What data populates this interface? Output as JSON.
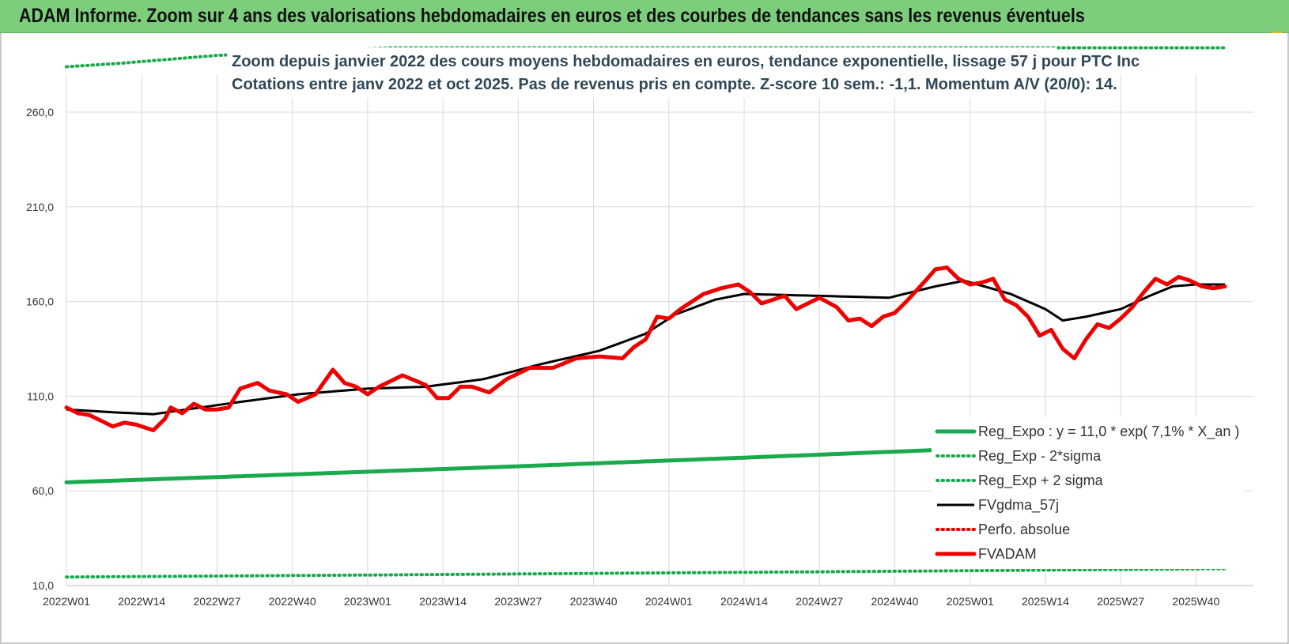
{
  "banner": {
    "title": "ADAM Informe. Zoom sur 4 ans des valorisations hebdomadaires en euros et des courbes de tendances sans les revenus éventuels"
  },
  "colors": {
    "banner_bg": "#7ccd7c",
    "reg_expo": "#1aaa4e",
    "fvgdma": "#000000",
    "fvadam": "#ee0000",
    "perfo": "#ee0000",
    "grid": "#d9d9d9"
  },
  "chart_data": {
    "type": "line",
    "title": "Zoom depuis janvier 2022 des cours moyens hebdomadaires en euros, tendance exponentielle, lissage 57 j pour PTC Inc",
    "subtitle": "Cotations entre janv 2022 et oct 2025. Pas de revenus pris en compte. Z-score 10 sem.: -1,1. Momentum A/V (20/0): 14.",
    "ylim": [
      10,
      295
    ],
    "y_ticks": [
      "10,0",
      "60,0",
      "110,0",
      "160,0",
      "210,0",
      "260,0"
    ],
    "x_ticks": [
      "2022W01",
      "2022W14",
      "2022W27",
      "2022W40",
      "2023W01",
      "2023W14",
      "2023W27",
      "2023W40",
      "2024W01",
      "2024W14",
      "2024W27",
      "2024W40",
      "2025W01",
      "2025W14",
      "2025W27",
      "2025W40"
    ],
    "x_tick_index": [
      0,
      13,
      26,
      39,
      52,
      65,
      78,
      91,
      104,
      117,
      130,
      143,
      156,
      169,
      182,
      195
    ],
    "grid": true,
    "legend_position": "bottom-right",
    "series": [
      {
        "name": "Reg_Expo : y = 11,0 * exp( 7,1% * X_an )",
        "style": "solid-thick",
        "color": "#1aaa4e",
        "anchors": [
          [
            0,
            64.5
          ],
          [
            40,
            68.8
          ],
          [
            80,
            73.2
          ],
          [
            120,
            77.9
          ],
          [
            160,
            82.8
          ],
          [
            200,
            87.9
          ]
        ]
      },
      {
        "name": "Reg_Exp - 2*sigma",
        "style": "dotted",
        "color": "#1aaa4e",
        "anchors": [
          [
            0,
            14.5
          ],
          [
            50,
            15.5
          ],
          [
            100,
            16.6
          ],
          [
            150,
            17.7
          ],
          [
            200,
            18.9
          ]
        ]
      },
      {
        "name": "Reg_Exp + 2 sigma",
        "style": "dotted",
        "color": "#1aaa4e",
        "anchors": [
          [
            0,
            284
          ],
          [
            10,
            286
          ],
          [
            26,
            290
          ],
          [
            56,
            294
          ],
          [
            200,
            294
          ]
        ]
      },
      {
        "name": "FVgdma_57j",
        "style": "solid",
        "color": "#000000",
        "anchors": [
          [
            0,
            103
          ],
          [
            8,
            101.5
          ],
          [
            15,
            100.5
          ],
          [
            30,
            107
          ],
          [
            40,
            111
          ],
          [
            52,
            114
          ],
          [
            62,
            115
          ],
          [
            72,
            119
          ],
          [
            82,
            127
          ],
          [
            92,
            134
          ],
          [
            100,
            143
          ],
          [
            105,
            153
          ],
          [
            112,
            161
          ],
          [
            117,
            164
          ],
          [
            130,
            163
          ],
          [
            142,
            162
          ],
          [
            150,
            168
          ],
          [
            155,
            171
          ],
          [
            163,
            164
          ],
          [
            169,
            156
          ],
          [
            172,
            150
          ],
          [
            176,
            152
          ],
          [
            182,
            156
          ],
          [
            187,
            163
          ],
          [
            191,
            168
          ],
          [
            195,
            169
          ],
          [
            200,
            169
          ]
        ]
      },
      {
        "name": "Perfo. absolue",
        "style": "dotted",
        "color": "#ee0000",
        "anchors": []
      },
      {
        "name": "FVADAM",
        "style": "solid-thick",
        "color": "#ee0000",
        "anchors": [
          [
            0,
            104
          ],
          [
            2,
            101
          ],
          [
            4,
            100
          ],
          [
            6,
            97
          ],
          [
            8,
            94
          ],
          [
            10,
            96
          ],
          [
            12,
            95
          ],
          [
            14,
            93
          ],
          [
            15,
            92
          ],
          [
            17,
            98
          ],
          [
            18,
            104
          ],
          [
            20,
            101
          ],
          [
            22,
            106
          ],
          [
            24,
            103
          ],
          [
            26,
            103
          ],
          [
            28,
            104
          ],
          [
            30,
            114
          ],
          [
            33,
            117
          ],
          [
            35,
            113
          ],
          [
            38,
            111
          ],
          [
            40,
            107
          ],
          [
            43,
            111
          ],
          [
            46,
            124
          ],
          [
            48,
            117
          ],
          [
            50,
            115
          ],
          [
            52,
            111
          ],
          [
            54,
            115
          ],
          [
            58,
            121
          ],
          [
            62,
            116
          ],
          [
            64,
            109
          ],
          [
            66,
            109
          ],
          [
            68,
            115
          ],
          [
            70,
            115
          ],
          [
            73,
            112
          ],
          [
            76,
            119
          ],
          [
            80,
            125
          ],
          [
            84,
            125
          ],
          [
            88,
            130
          ],
          [
            92,
            131
          ],
          [
            96,
            130
          ],
          [
            98,
            136
          ],
          [
            100,
            140
          ],
          [
            102,
            152
          ],
          [
            104,
            151
          ],
          [
            106,
            156
          ],
          [
            108,
            160
          ],
          [
            110,
            164
          ],
          [
            113,
            167
          ],
          [
            116,
            169
          ],
          [
            118,
            165
          ],
          [
            120,
            159
          ],
          [
            122,
            161
          ],
          [
            124,
            163
          ],
          [
            126,
            156
          ],
          [
            128,
            159
          ],
          [
            130,
            162
          ],
          [
            133,
            157
          ],
          [
            135,
            150
          ],
          [
            137,
            151
          ],
          [
            139,
            147
          ],
          [
            141,
            152
          ],
          [
            143,
            154
          ],
          [
            145,
            160
          ],
          [
            148,
            170
          ],
          [
            150,
            177
          ],
          [
            152,
            178
          ],
          [
            154,
            172
          ],
          [
            156,
            169
          ],
          [
            158,
            170
          ],
          [
            160,
            172
          ],
          [
            162,
            161
          ],
          [
            164,
            158
          ],
          [
            166,
            152
          ],
          [
            168,
            142
          ],
          [
            170,
            145
          ],
          [
            172,
            135
          ],
          [
            174,
            130
          ],
          [
            176,
            140
          ],
          [
            178,
            148
          ],
          [
            180,
            146
          ],
          [
            182,
            151
          ],
          [
            184,
            157
          ],
          [
            186,
            165
          ],
          [
            188,
            172
          ],
          [
            190,
            169
          ],
          [
            192,
            173
          ],
          [
            194,
            171
          ],
          [
            196,
            168
          ],
          [
            198,
            167
          ],
          [
            200,
            168
          ]
        ]
      }
    ]
  }
}
